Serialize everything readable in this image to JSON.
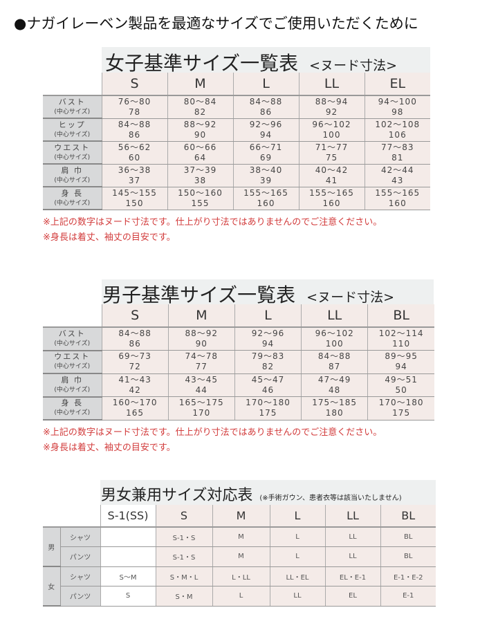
{
  "heading": "●ナガイレーベン製品を最適なサイズでご使用いただくために",
  "women": {
    "title": "女子基準サイズ一覧表",
    "subtitle": "<ヌード寸法>",
    "sizes": [
      "S",
      "M",
      "L",
      "LL",
      "EL"
    ],
    "center_label": "(中心サイズ)",
    "rows": [
      {
        "label": "バスト",
        "ranges": [
          "76〜80",
          "80〜84",
          "84〜88",
          "88〜94",
          "94〜100"
        ],
        "centers": [
          "78",
          "82",
          "86",
          "92",
          "98"
        ]
      },
      {
        "label": "ヒップ",
        "ranges": [
          "84〜88",
          "88〜92",
          "92〜96",
          "96〜102",
          "102〜108"
        ],
        "centers": [
          "86",
          "90",
          "94",
          "100",
          "106"
        ]
      },
      {
        "label": "ウエスト",
        "ranges": [
          "56〜62",
          "60〜66",
          "66〜71",
          "71〜77",
          "77〜83"
        ],
        "centers": [
          "60",
          "64",
          "69",
          "75",
          "81"
        ]
      },
      {
        "label": "肩 巾",
        "ranges": [
          "36〜38",
          "37〜39",
          "38〜40",
          "40〜42",
          "42〜44"
        ],
        "centers": [
          "37",
          "38",
          "39",
          "41",
          "43"
        ]
      },
      {
        "label": "身 長",
        "ranges": [
          "145〜155",
          "150〜160",
          "155〜165",
          "155〜165",
          "155〜165"
        ],
        "centers": [
          "150",
          "155",
          "160",
          "160",
          "160"
        ]
      }
    ],
    "notes": [
      "※上記の数字はヌード寸法です。仕上がり寸法ではありませんのでご注意ください。",
      "※身長は着丈、袖丈の目安です。"
    ]
  },
  "men": {
    "title": "男子基準サイズ一覧表",
    "subtitle": "<ヌード寸法>",
    "sizes": [
      "S",
      "M",
      "L",
      "LL",
      "BL"
    ],
    "center_label": "(中心サイズ)",
    "rows": [
      {
        "label": "バスト",
        "ranges": [
          "84〜88",
          "88〜92",
          "92〜96",
          "96〜102",
          "102〜114"
        ],
        "centers": [
          "86",
          "90",
          "94",
          "100",
          "110"
        ]
      },
      {
        "label": "ウエスト",
        "ranges": [
          "69〜73",
          "74〜78",
          "79〜83",
          "84〜88",
          "89〜95"
        ],
        "centers": [
          "72",
          "77",
          "82",
          "87",
          "94"
        ]
      },
      {
        "label": "肩 巾",
        "ranges": [
          "41〜43",
          "43〜45",
          "45〜47",
          "47〜49",
          "49〜51"
        ],
        "centers": [
          "42",
          "44",
          "46",
          "48",
          "50"
        ]
      },
      {
        "label": "身 長",
        "ranges": [
          "160〜170",
          "165〜175",
          "170〜180",
          "175〜185",
          "170〜180"
        ],
        "centers": [
          "165",
          "170",
          "175",
          "180",
          "175"
        ]
      }
    ],
    "notes": [
      "※上記の数字はヌード寸法です。仕上がり寸法ではありませんのでご注意ください。",
      "※身長は着丈、袖丈の目安です。"
    ]
  },
  "unisex": {
    "title": "男女兼用サイズ対応表",
    "subtitle": "(※手術ガウン、患者衣等は該当いたしません)",
    "sizes": [
      "S-1(SS)",
      "S",
      "M",
      "L",
      "LL",
      "BL"
    ],
    "groups": [
      {
        "label": "男",
        "rows": [
          {
            "label": "シャツ",
            "values": [
              "",
              "S-1・S",
              "M",
              "L",
              "LL",
              "BL"
            ]
          },
          {
            "label": "パンツ",
            "values": [
              "",
              "S-1・S",
              "M",
              "L",
              "LL",
              "BL"
            ]
          }
        ]
      },
      {
        "label": "女",
        "rows": [
          {
            "label": "シャツ",
            "values": [
              "S〜M",
              "S・M・L",
              "L・LL",
              "LL・EL",
              "EL・E-1",
              "E-1・E-2"
            ]
          },
          {
            "label": "パンツ",
            "values": [
              "S",
              "S・M",
              "L",
              "LL",
              "EL",
              "E-1"
            ]
          }
        ]
      }
    ]
  }
}
